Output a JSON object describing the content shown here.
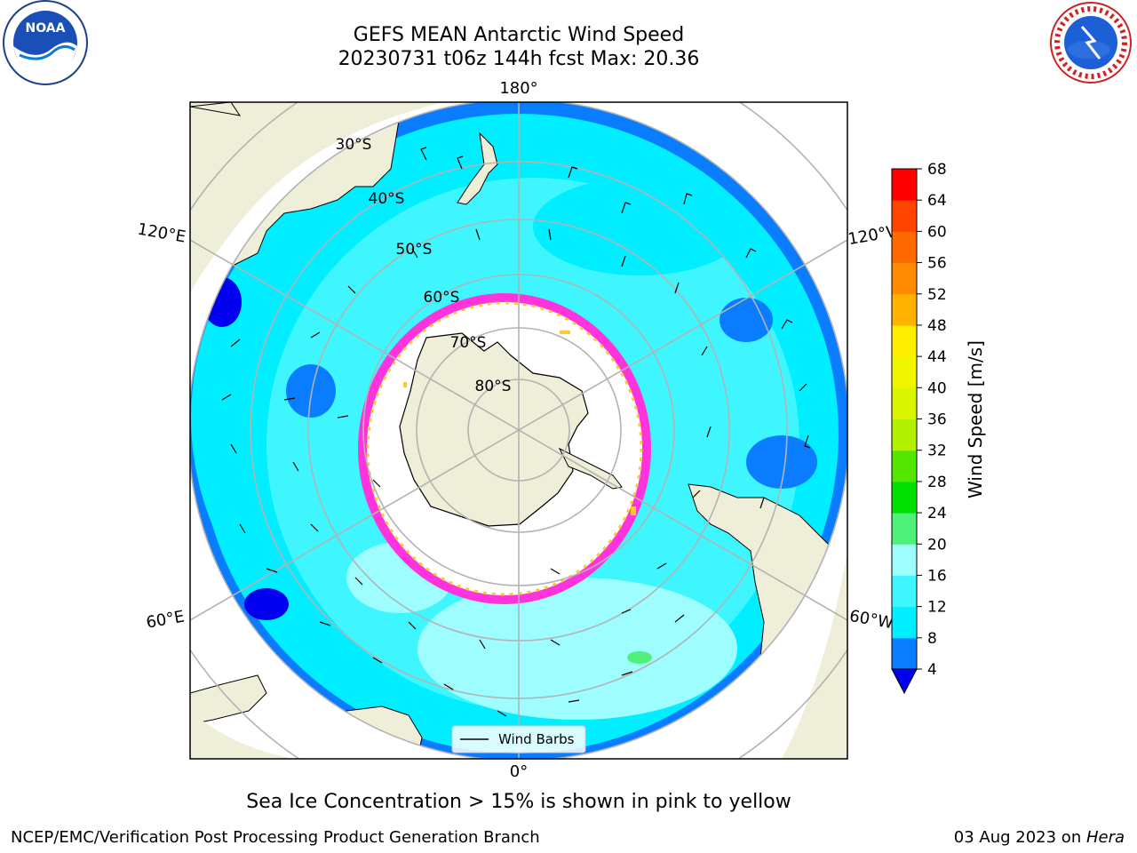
{
  "title": {
    "line1": "GEFS MEAN Antarctic Wind Speed",
    "line2": "20230731 t06z 144h fcst   Max: 20.36"
  },
  "map": {
    "projection": "south-polar-stereographic",
    "lon_labels": {
      "top": "180°",
      "bottom": "0°",
      "upper_left": "120°E",
      "upper_right": "120°W",
      "lower_left": "60°E",
      "lower_right": "60°W"
    },
    "lat_labels": [
      "30°S",
      "40°S",
      "50°S",
      "60°S",
      "70°S",
      "80°S"
    ],
    "legend_label": "Wind Barbs",
    "colors": {
      "land": "#efeed8",
      "ocean_4_8": "#0a7cff",
      "ocean_8_12": "#00f0ff",
      "ocean_12_16": "#3ff5ff",
      "ocean_16_20": "#9dffff",
      "ice_edge": "#ff33dd",
      "ice_edge_yellow": "#ffc830"
    }
  },
  "colorbar": {
    "label": "Wind Speed [m/s]",
    "ticks": [
      "4",
      "8",
      "12",
      "16",
      "20",
      "24",
      "28",
      "32",
      "36",
      "40",
      "44",
      "48",
      "52",
      "56",
      "60",
      "64",
      "68"
    ],
    "colors": [
      "#0a7cff",
      "#00eeff",
      "#3ff6ff",
      "#9dfdff",
      "#4ff07a",
      "#00e000",
      "#55e600",
      "#b3f000",
      "#d9f500",
      "#f0f500",
      "#ffee00",
      "#ffb300",
      "#ff8c00",
      "#ff6a00",
      "#ff4400",
      "#ff0000"
    ],
    "underflow_color": "#0000ee"
  },
  "caption": "Sea Ice Concentration > 15% is shown in pink to yellow",
  "footer": {
    "left": "NCEP/EMC/Verification Post Processing Product Generation Branch",
    "right_date": "03 Aug 2023 on ",
    "right_machine": "Hera"
  },
  "logos": {
    "noaa_text": "NOAA",
    "nws_text": "NATIONAL WEATHER SERVICE"
  }
}
